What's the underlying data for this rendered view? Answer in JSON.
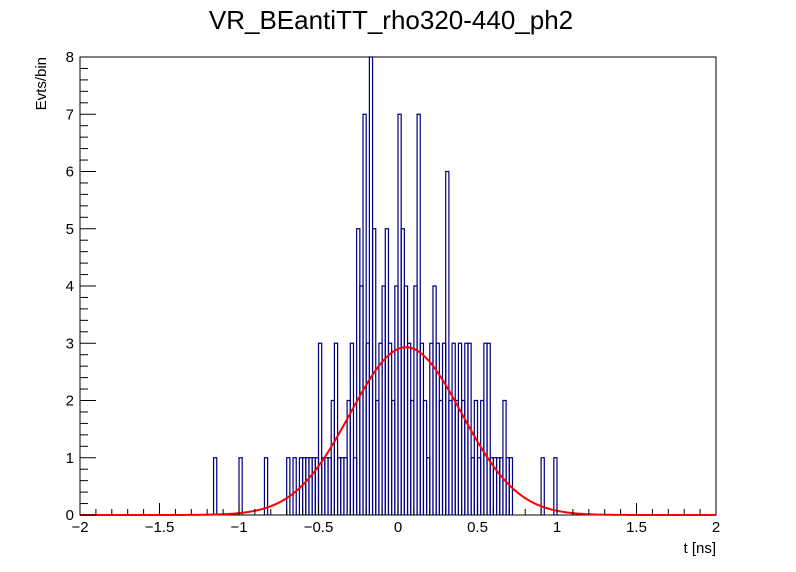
{
  "chart_data": {
    "type": "histogram",
    "title": "VR_BEantiTT_rho320-440_ph2",
    "xlabel": "t [ns]",
    "ylabel": "Evts/bin",
    "xlim": [
      -2,
      2
    ],
    "ylim": [
      0,
      8
    ],
    "x_ticks": [
      -2,
      -1.5,
      -1,
      -0.5,
      0,
      0.5,
      1,
      1.5,
      2
    ],
    "x_tick_labels": [
      "−2",
      "−1.5",
      "−1",
      "−0.5",
      "0",
      "0.5",
      "1",
      "1.5",
      "2"
    ],
    "y_ticks": [
      0,
      1,
      2,
      3,
      4,
      5,
      6,
      7,
      8
    ],
    "y_tick_labels": [
      "0",
      "1",
      "2",
      "3",
      "4",
      "5",
      "6",
      "7",
      "8"
    ],
    "bin_width": 0.02,
    "bins": [
      [
        -1.16,
        1
      ],
      [
        -1.0,
        1
      ],
      [
        -0.84,
        1
      ],
      [
        -0.7,
        1
      ],
      [
        -0.66,
        1
      ],
      [
        -0.62,
        1
      ],
      [
        -0.6,
        1
      ],
      [
        -0.58,
        1
      ],
      [
        -0.56,
        1
      ],
      [
        -0.54,
        1
      ],
      [
        -0.52,
        1
      ],
      [
        -0.5,
        3
      ],
      [
        -0.48,
        1
      ],
      [
        -0.46,
        1
      ],
      [
        -0.44,
        1
      ],
      [
        -0.42,
        2
      ],
      [
        -0.4,
        3
      ],
      [
        -0.38,
        1
      ],
      [
        -0.36,
        1
      ],
      [
        -0.34,
        1
      ],
      [
        -0.32,
        2
      ],
      [
        -0.3,
        3
      ],
      [
        -0.28,
        1
      ],
      [
        -0.26,
        5
      ],
      [
        -0.24,
        4
      ],
      [
        -0.22,
        7
      ],
      [
        -0.2,
        3
      ],
      [
        -0.18,
        8
      ],
      [
        -0.16,
        5
      ],
      [
        -0.14,
        2
      ],
      [
        -0.12,
        3
      ],
      [
        -0.1,
        4
      ],
      [
        -0.08,
        5
      ],
      [
        -0.06,
        3
      ],
      [
        -0.04,
        2
      ],
      [
        -0.02,
        4
      ],
      [
        0.0,
        7
      ],
      [
        0.02,
        5
      ],
      [
        0.04,
        4
      ],
      [
        0.06,
        3
      ],
      [
        0.08,
        2
      ],
      [
        0.1,
        4
      ],
      [
        0.12,
        7
      ],
      [
        0.14,
        3
      ],
      [
        0.16,
        2
      ],
      [
        0.18,
        1
      ],
      [
        0.2,
        3
      ],
      [
        0.22,
        4
      ],
      [
        0.24,
        3
      ],
      [
        0.26,
        2
      ],
      [
        0.28,
        3
      ],
      [
        0.3,
        6
      ],
      [
        0.32,
        2
      ],
      [
        0.34,
        3
      ],
      [
        0.36,
        2
      ],
      [
        0.38,
        3
      ],
      [
        0.4,
        2
      ],
      [
        0.42,
        3
      ],
      [
        0.44,
        3
      ],
      [
        0.46,
        1
      ],
      [
        0.48,
        2
      ],
      [
        0.5,
        1
      ],
      [
        0.52,
        2
      ],
      [
        0.54,
        3
      ],
      [
        0.56,
        3
      ],
      [
        0.58,
        1
      ],
      [
        0.6,
        1
      ],
      [
        0.62,
        1
      ],
      [
        0.64,
        1
      ],
      [
        0.66,
        2
      ],
      [
        0.68,
        1
      ],
      [
        0.7,
        1
      ],
      [
        0.9,
        1
      ],
      [
        0.98,
        1
      ]
    ],
    "fit": {
      "type": "gaussian",
      "amplitude": 2.93,
      "mean": 0.05,
      "sigma": 0.35,
      "color": "#ff0000"
    },
    "histogram_color": "#000080",
    "grid": false,
    "legend": false
  }
}
